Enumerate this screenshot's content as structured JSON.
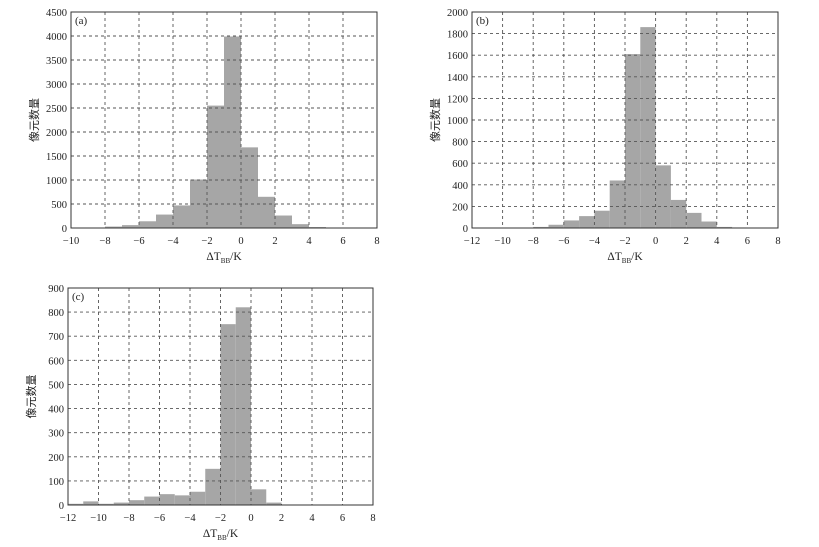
{
  "chart_data": [
    {
      "type": "bar",
      "panel_tag": "(a)",
      "xlabel": "ΔTBB/K",
      "xlabel_parts": {
        "prefix": "ΔT",
        "sub": "BB",
        "suffix": "/K"
      },
      "ylabel": "像元数量",
      "xlim": [
        -10,
        8
      ],
      "ylim": [
        0,
        4500
      ],
      "xticks": [
        -10,
        -8,
        -6,
        -4,
        -2,
        0,
        2,
        4,
        6,
        8
      ],
      "xtick_labels": [
        "−10",
        "−8",
        "−6",
        "−4",
        "−2",
        "0",
        "2",
        "4",
        "6",
        "8"
      ],
      "yticks": [
        0,
        500,
        1000,
        1500,
        2000,
        2500,
        3000,
        3500,
        4000,
        4500
      ],
      "ytick_labels": [
        "0",
        "500",
        "1000",
        "1500",
        "2000",
        "2500",
        "3000",
        "3500",
        "4000",
        "4500"
      ],
      "bin_width": 1.0,
      "bins": [
        -8.5,
        -7.5,
        -6.5,
        -5.5,
        -4.5,
        -3.5,
        -2.5,
        -1.5,
        -0.5,
        0.5,
        1.5,
        2.5,
        3.5,
        4.5,
        5.5
      ],
      "values": [
        10,
        30,
        60,
        140,
        280,
        470,
        1010,
        2550,
        3990,
        1680,
        650,
        260,
        80,
        20,
        5
      ],
      "grid": true
    },
    {
      "type": "bar",
      "panel_tag": "(b)",
      "xlabel": "ΔTBB/K",
      "xlabel_parts": {
        "prefix": "ΔT",
        "sub": "BB",
        "suffix": "/K"
      },
      "ylabel": "像元数量",
      "xlim": [
        -12,
        8
      ],
      "ylim": [
        0,
        2000
      ],
      "xticks": [
        -12,
        -10,
        -8,
        -6,
        -4,
        -2,
        0,
        2,
        4,
        6,
        8
      ],
      "xtick_labels": [
        "−12",
        "−10",
        "−8",
        "−6",
        "−4",
        "−2",
        "0",
        "2",
        "4",
        "6",
        "8"
      ],
      "yticks": [
        0,
        200,
        400,
        600,
        800,
        1000,
        1200,
        1400,
        1600,
        1800,
        2000
      ],
      "ytick_labels": [
        "0",
        "200",
        "400",
        "600",
        "800",
        "1000",
        "1200",
        "1400",
        "1600",
        "1800",
        "2000"
      ],
      "bin_width": 1.0,
      "bins": [
        -7.5,
        -6.5,
        -5.5,
        -4.5,
        -3.5,
        -2.5,
        -1.5,
        -0.5,
        0.5,
        1.5,
        2.5,
        3.5,
        4.5,
        5.5
      ],
      "values": [
        10,
        30,
        70,
        110,
        160,
        440,
        1610,
        1860,
        580,
        260,
        140,
        60,
        10,
        5
      ],
      "grid": true
    },
    {
      "type": "bar",
      "panel_tag": "(c)",
      "xlabel": "ΔTBB/K",
      "xlabel_parts": {
        "prefix": "ΔT",
        "sub": "BB",
        "suffix": "/K"
      },
      "ylabel": "像元数量",
      "xlim": [
        -12,
        8
      ],
      "ylim": [
        0,
        900
      ],
      "xticks": [
        -12,
        -10,
        -8,
        -6,
        -4,
        -2,
        0,
        2,
        4,
        6,
        8
      ],
      "xtick_labels": [
        "−12",
        "−10",
        "−8",
        "−6",
        "−4",
        "−2",
        "0",
        "2",
        "4",
        "6",
        "8"
      ],
      "yticks": [
        0,
        100,
        200,
        300,
        400,
        500,
        600,
        700,
        800,
        900
      ],
      "ytick_labels": [
        "0",
        "100",
        "200",
        "300",
        "400",
        "500",
        "600",
        "700",
        "800",
        "900"
      ],
      "bin_width": 1.0,
      "bins": [
        -11.5,
        -10.5,
        -9.5,
        -8.5,
        -7.5,
        -6.5,
        -5.5,
        -4.5,
        -3.5,
        -2.5,
        -1.5,
        -0.5,
        0.5,
        1.5
      ],
      "values": [
        5,
        15,
        5,
        10,
        20,
        35,
        45,
        40,
        55,
        150,
        750,
        820,
        65,
        10
      ],
      "grid": true
    }
  ]
}
